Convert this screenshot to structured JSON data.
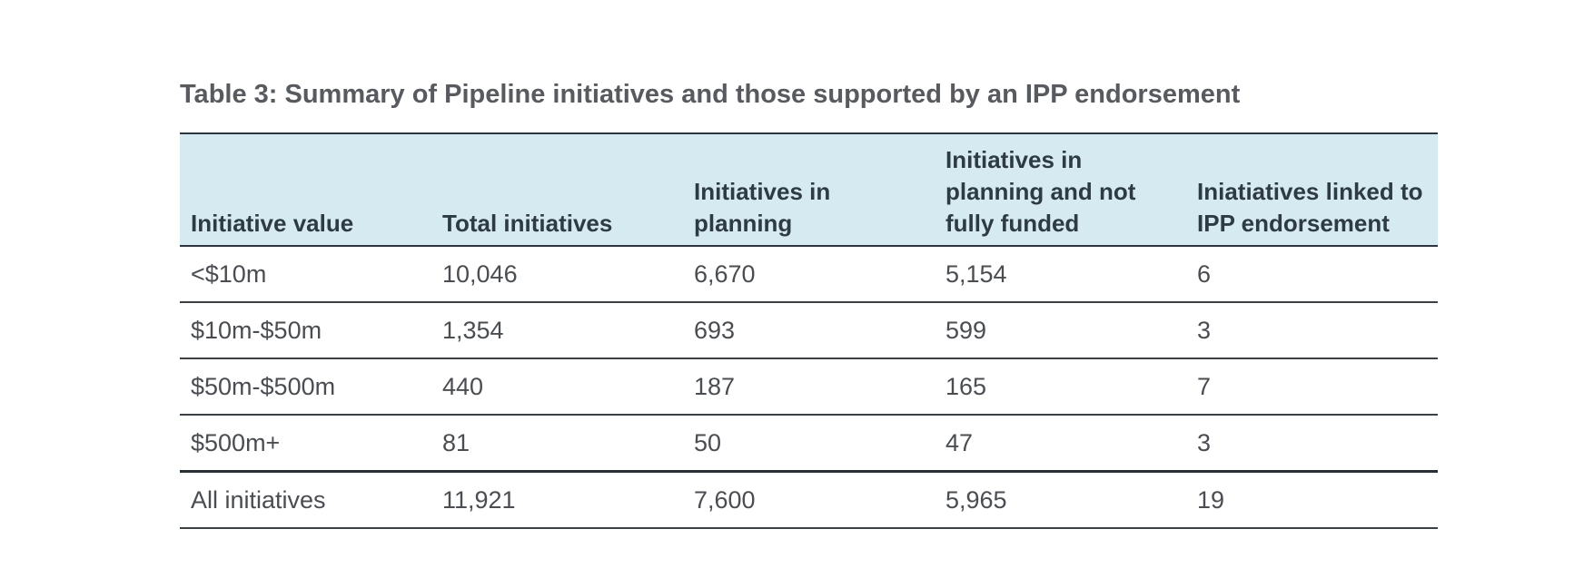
{
  "title": "Table 3: Summary of Pipeline initiatives and those supported by an IPP endorsement",
  "columns": [
    "Initiative value",
    "Total initiatives",
    "Initiatives in planning",
    "Initiatives in planning and not fully funded",
    "Iniatiatives linked to IPP endorsement"
  ],
  "rows": [
    [
      "<$10m",
      "10,046",
      "6,670",
      "5,154",
      "6"
    ],
    [
      "$10m-$50m",
      "1,354",
      "693",
      "599",
      "3"
    ],
    [
      "$50m-$500m",
      "440",
      "187",
      "165",
      "7"
    ],
    [
      "$500m+",
      "81",
      "50",
      "47",
      "3"
    ]
  ],
  "totals": [
    "All initiatives",
    "11,921",
    "7,600",
    "5,965",
    "19"
  ]
}
